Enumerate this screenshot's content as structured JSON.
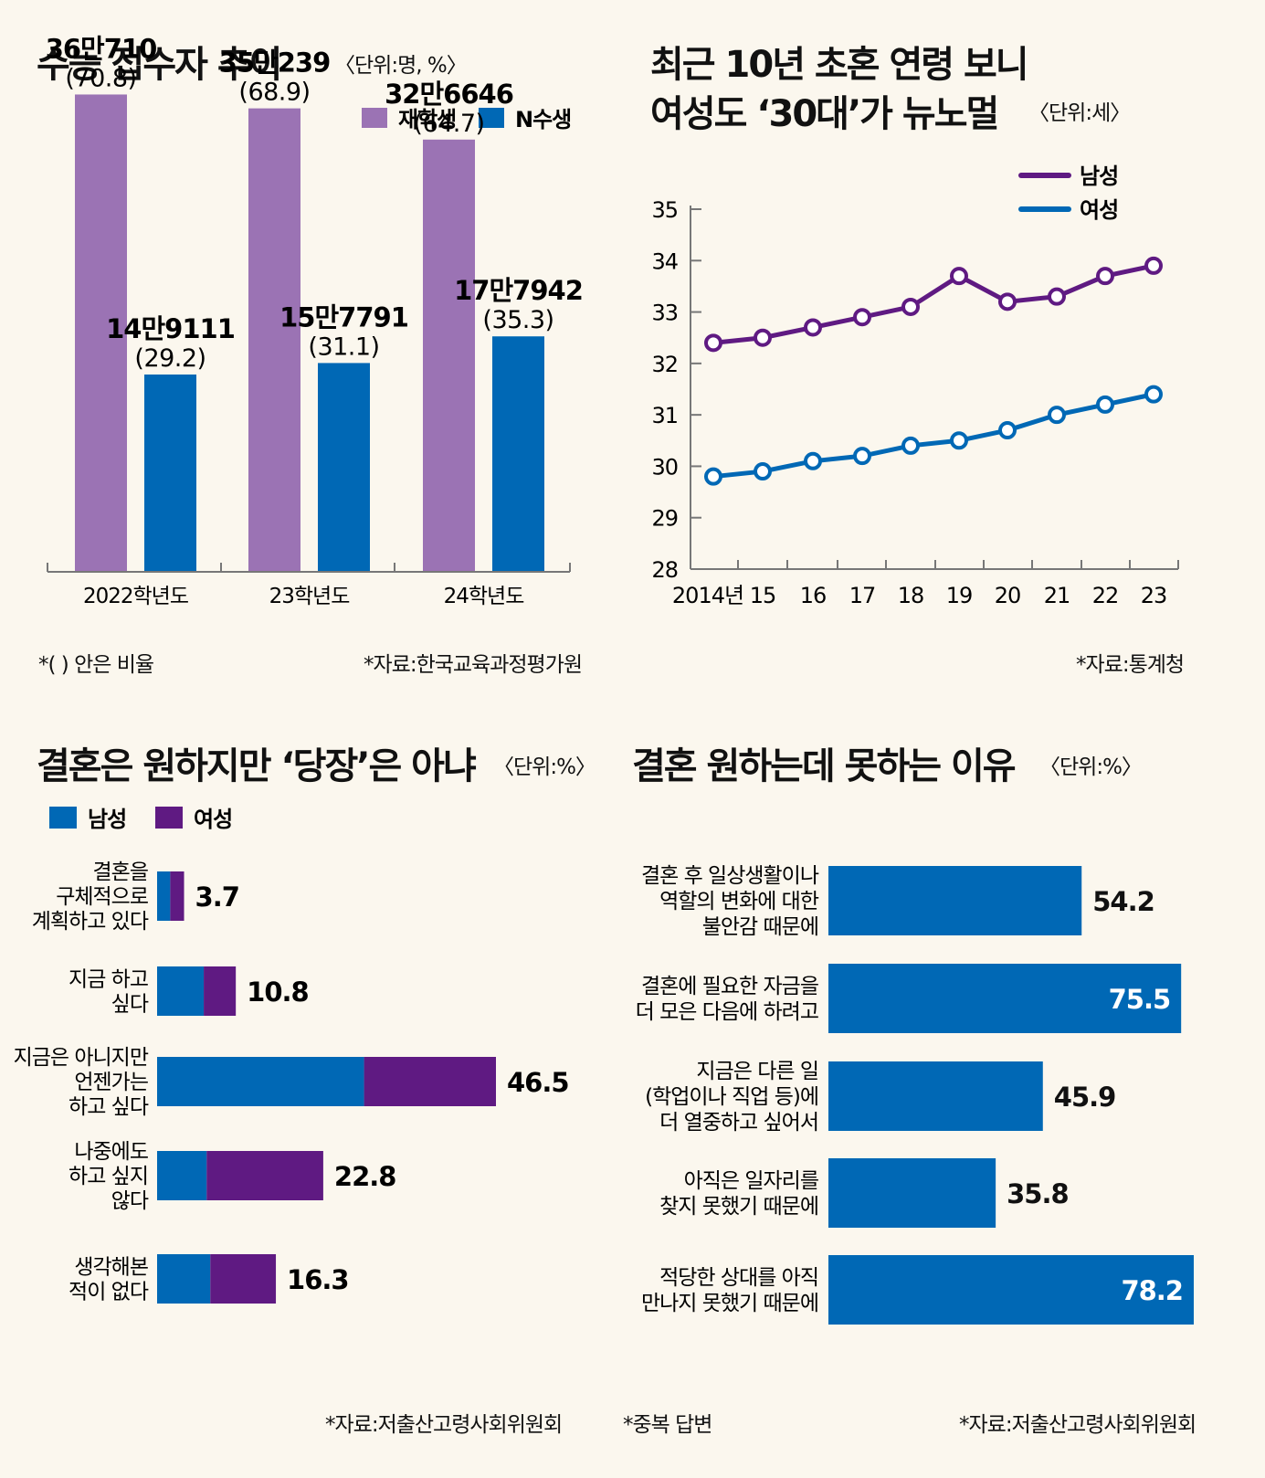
{
  "panel1": {
    "title": "수능 접수자 추이",
    "unit": "〈단위:명, %〉",
    "note": "*(   ) 안은 비율",
    "source": "*자료:한국교육과정평가원"
  },
  "panel2": {
    "title_line1": "최근 10년 초혼 연령 보니",
    "title_line2": "여성도 ‘30대’가 뉴노멀",
    "unit": "〈단위:세〉",
    "source": "*자료:통계청"
  },
  "panel3": {
    "title": "결혼은 원하지만 ‘당장’은 아냐",
    "unit": "〈단위:%〉",
    "source": "*자료:저출산고령사회위원회"
  },
  "panel4": {
    "title": "결혼 원하는데 못하는 이유",
    "unit": "〈단위:%〉",
    "note": "*중복 답변",
    "source": "*자료:저출산고령사회위원회"
  },
  "colors": {
    "purple_light": "#9b73b4",
    "blue": "#0068b5",
    "purple_dark": "#5f1a82",
    "bg": "#fbf7ee"
  },
  "chart_data": [
    {
      "type": "bar",
      "title": "수능 접수자 추이",
      "categories": [
        "2022학년도",
        "23학년도",
        "24학년도"
      ],
      "series": [
        {
          "name": "재학생",
          "values": [
            360710,
            350239,
            326646
          ],
          "labels": [
            "36만710",
            "35만239",
            "32만6646"
          ],
          "shares": [
            "(70.8)",
            "(68.9)",
            "(64.7)"
          ]
        },
        {
          "name": "N수생",
          "values": [
            149111,
            157791,
            177942
          ],
          "labels": [
            "14만9111",
            "15만7791",
            "17만7942"
          ],
          "shares": [
            "(29.2)",
            "(31.1)",
            "(35.3)"
          ]
        }
      ],
      "ylim": [
        0,
        370000
      ]
    },
    {
      "type": "line",
      "title": "최근 10년 초혼 연령 보니 여성도 ‘30대’가 뉴노멀",
      "x": [
        2014,
        2015,
        2016,
        2017,
        2018,
        2019,
        2020,
        2021,
        2022,
        2023
      ],
      "x_tick_labels": [
        "2014년",
        "15",
        "16",
        "17",
        "18",
        "19",
        "20",
        "21",
        "22",
        "23"
      ],
      "series": [
        {
          "name": "남성",
          "values": [
            32.4,
            32.5,
            32.7,
            32.9,
            33.1,
            33.7,
            33.2,
            33.3,
            33.7,
            33.9
          ]
        },
        {
          "name": "여성",
          "values": [
            29.8,
            29.9,
            30.1,
            30.2,
            30.4,
            30.5,
            30.7,
            31.0,
            31.2,
            31.4
          ]
        }
      ],
      "ylim": [
        28,
        35
      ],
      "y_ticks": [
        "28",
        "29",
        "30",
        "31",
        "32",
        "33",
        "34",
        "35"
      ],
      "legend": "top-right"
    },
    {
      "type": "bar",
      "orientation": "horizontal",
      "stacked": true,
      "title": "결혼은 원하지만 ‘당장’은 아냐",
      "legend_names": [
        "남성",
        "여성"
      ],
      "categories": [
        [
          "결혼을",
          "구체적으로",
          "계획하고 있다"
        ],
        [
          "지금 하고",
          "싶다"
        ],
        [
          "지금은 아니지만",
          "언젠가는",
          "하고 싶다"
        ],
        [
          "나중에도",
          "하고 싶지",
          "않다"
        ],
        [
          "생각해본",
          "적이 없다"
        ]
      ],
      "totals": [
        "3.7",
        "10.8",
        "46.5",
        "22.8",
        "16.3"
      ],
      "total_values": [
        3.7,
        10.8,
        46.5,
        22.8,
        16.3
      ],
      "male_values": [
        1.8,
        6.4,
        28.4,
        6.8,
        7.3
      ],
      "xlim": [
        0,
        46.5
      ]
    },
    {
      "type": "bar",
      "orientation": "horizontal",
      "title": "결혼 원하는데 못하는 이유",
      "categories": [
        [
          "결혼 후 일상생활이나",
          "역할의 변화에 대한",
          "불안감 때문에"
        ],
        [
          "결혼에 필요한 자금을",
          "더 모은 다음에 하려고"
        ],
        [
          "지금은 다른 일",
          "(학업이나 직업 등)에",
          "더 열중하고 싶어서"
        ],
        [
          "아직은 일자리를",
          "찾지 못했기 때문에"
        ],
        [
          "적당한 상대를 아직",
          "만나지 못했기 때문에"
        ]
      ],
      "value_labels": [
        "54.2",
        "75.5",
        "45.9",
        "35.8",
        "78.2"
      ],
      "values": [
        54.2,
        75.5,
        45.9,
        35.8,
        78.2
      ],
      "xlim": [
        0,
        78.2
      ]
    }
  ]
}
